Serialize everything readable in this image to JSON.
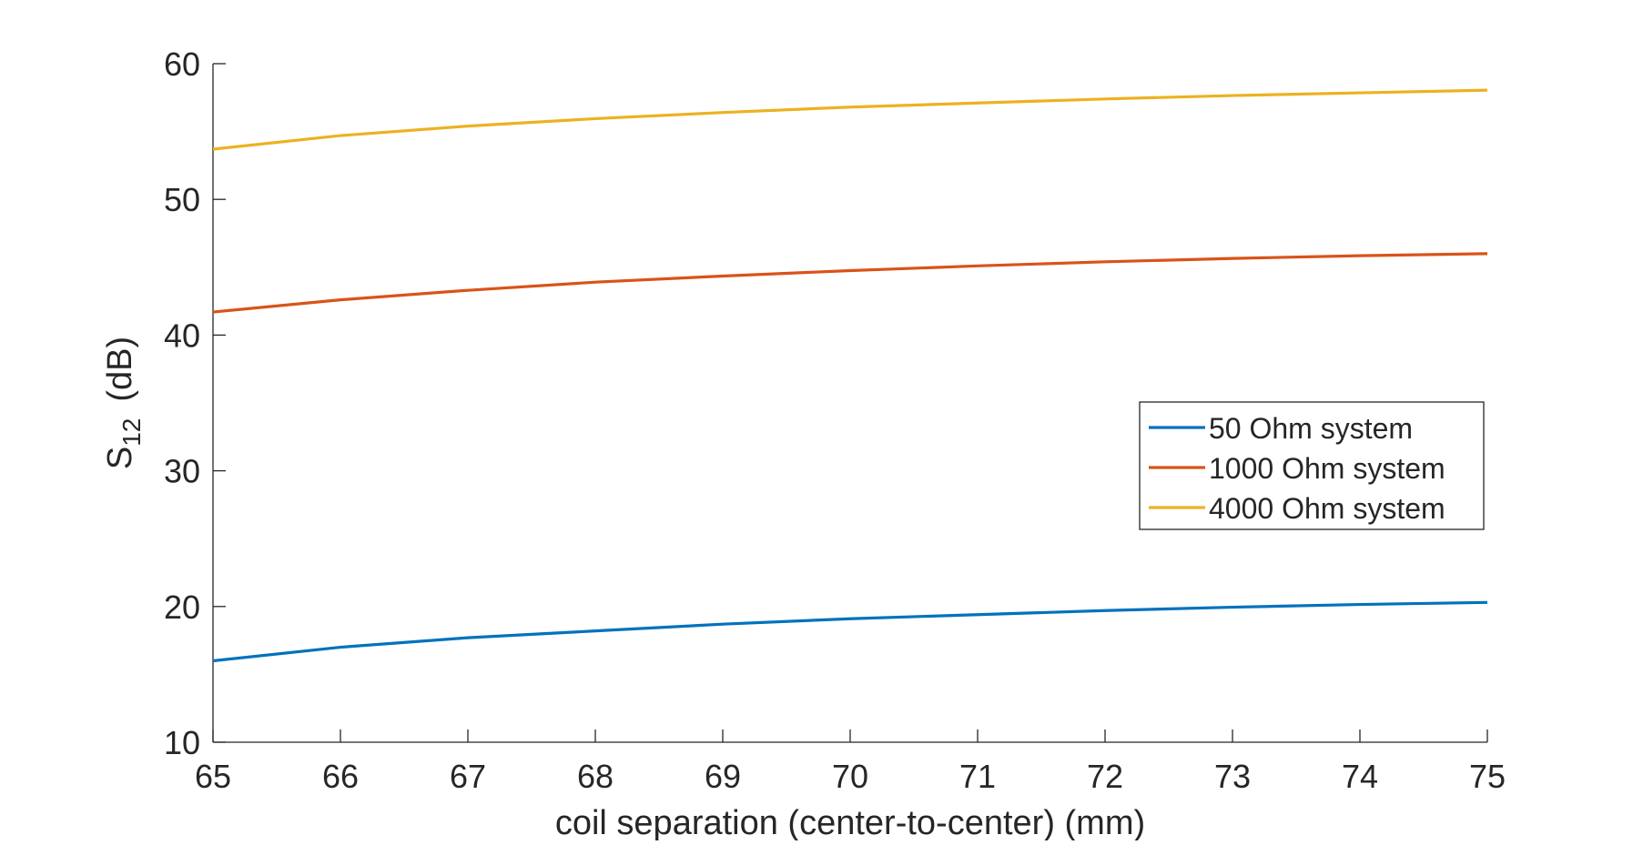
{
  "chart_data": {
    "type": "line",
    "title": "",
    "xlabel": "coil separation (center-to-center) (mm)",
    "ylabel": {
      "main": "S",
      "subscript": "12",
      "unit": "(dB)"
    },
    "x": [
      65,
      66,
      67,
      68,
      69,
      70,
      71,
      72,
      73,
      74,
      75
    ],
    "xlim": [
      65,
      75
    ],
    "ylim": [
      10,
      60
    ],
    "xticks": [
      "65",
      "66",
      "67",
      "68",
      "69",
      "70",
      "71",
      "72",
      "73",
      "74",
      "75"
    ],
    "yticks": [
      "10",
      "20",
      "30",
      "40",
      "50",
      "60"
    ],
    "grid": false,
    "legend_position": "right",
    "series": [
      {
        "name": "50 Ohm system",
        "color": "#0072BD",
        "values": [
          16.0,
          17.0,
          17.7,
          18.2,
          18.7,
          19.1,
          19.4,
          19.7,
          19.95,
          20.15,
          20.3
        ]
      },
      {
        "name": "1000 Ohm system",
        "color": "#D95319",
        "values": [
          41.7,
          42.6,
          43.3,
          43.9,
          44.35,
          44.75,
          45.1,
          45.4,
          45.65,
          45.85,
          46.0
        ]
      },
      {
        "name": "4000 Ohm system",
        "color": "#EDB120",
        "values": [
          53.7,
          54.7,
          55.4,
          55.95,
          56.4,
          56.8,
          57.1,
          57.4,
          57.65,
          57.85,
          58.05
        ]
      }
    ]
  }
}
